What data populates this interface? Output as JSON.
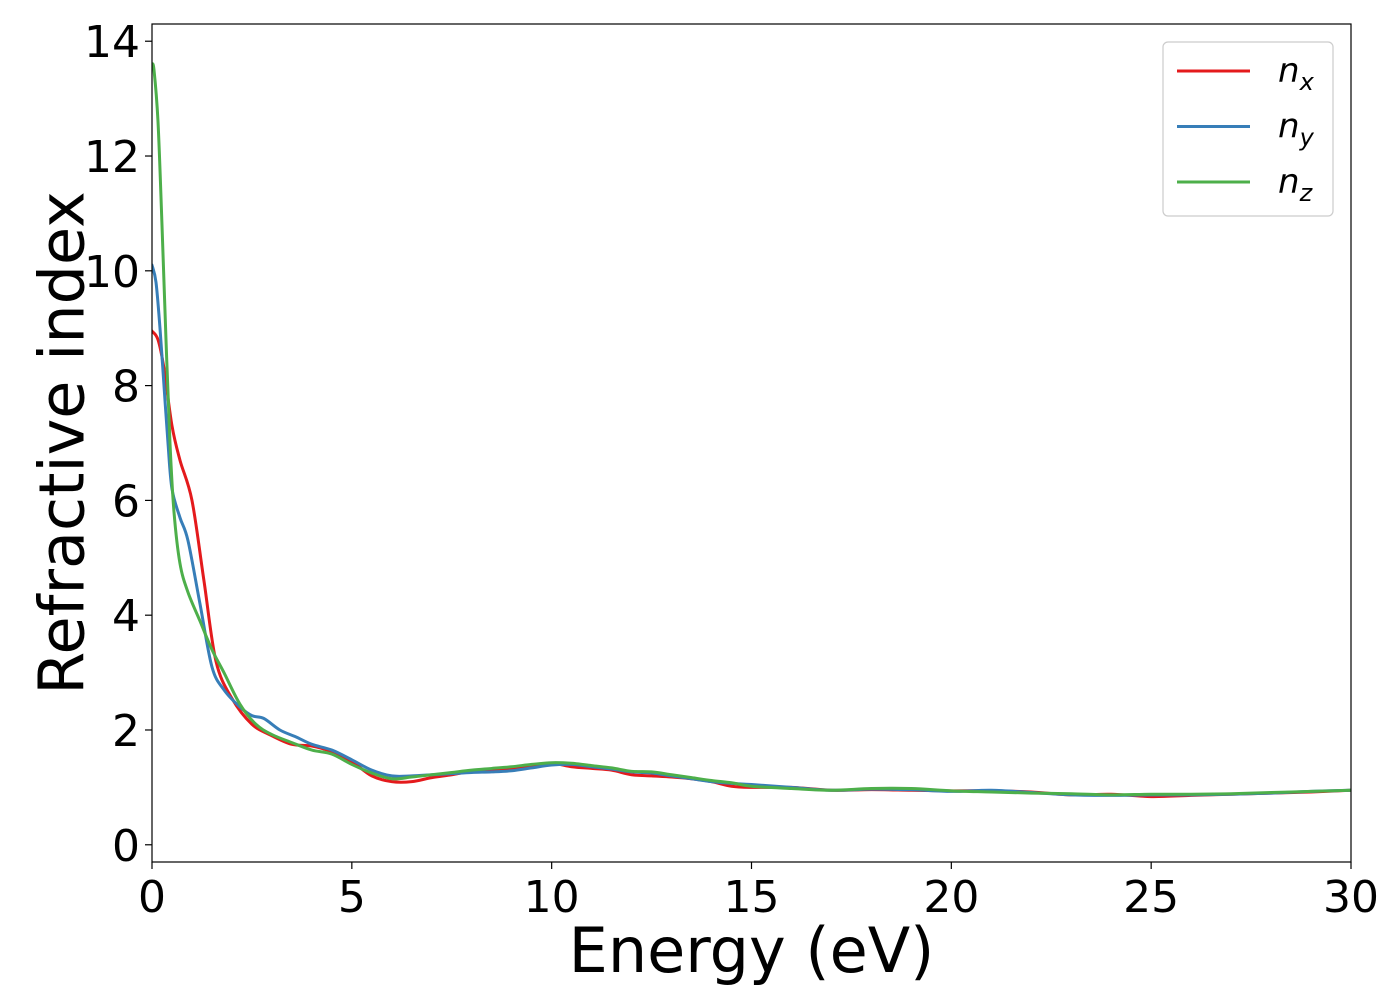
{
  "chart_data": {
    "type": "line",
    "title": "",
    "xlabel": "Energy (eV)",
    "ylabel": "Refractive index",
    "xlim": [
      0,
      30
    ],
    "ylim": [
      -0.3,
      14.3
    ],
    "xticks": [
      0,
      5,
      10,
      15,
      20,
      25,
      30
    ],
    "yticks": [
      0,
      2,
      4,
      6,
      8,
      10,
      12,
      14
    ],
    "grid": false,
    "legend_position": "top-right",
    "series": [
      {
        "name": "n",
        "subscript": "x",
        "color": "#e41a1c",
        "x": [
          0.0,
          0.15,
          0.3,
          0.5,
          0.7,
          1.0,
          1.3,
          1.6,
          2.0,
          2.5,
          3.0,
          3.5,
          4.0,
          4.5,
          5.0,
          5.5,
          6.0,
          6.5,
          7.0,
          7.5,
          8.0,
          8.5,
          9.0,
          9.5,
          10.0,
          10.5,
          11.0,
          11.5,
          12.0,
          12.5,
          13.0,
          13.5,
          14.0,
          14.5,
          15.0,
          16.0,
          17.0,
          18.0,
          19.0,
          20.0,
          21.0,
          22.0,
          23.0,
          24.0,
          25.0,
          26.0,
          27.0,
          28.0,
          29.0,
          30.0
        ],
        "y": [
          8.95,
          8.8,
          8.3,
          7.3,
          6.7,
          6.0,
          4.6,
          3.2,
          2.55,
          2.1,
          1.9,
          1.75,
          1.72,
          1.62,
          1.45,
          1.2,
          1.1,
          1.1,
          1.17,
          1.22,
          1.28,
          1.3,
          1.33,
          1.38,
          1.42,
          1.36,
          1.33,
          1.3,
          1.22,
          1.2,
          1.18,
          1.15,
          1.1,
          1.02,
          1.0,
          1.0,
          0.95,
          0.96,
          0.95,
          0.94,
          0.94,
          0.92,
          0.87,
          0.88,
          0.84,
          0.86,
          0.88,
          0.9,
          0.92,
          0.95
        ]
      },
      {
        "name": "n",
        "subscript": "y",
        "color": "#377eb8",
        "x": [
          0.0,
          0.1,
          0.2,
          0.3,
          0.4,
          0.5,
          0.7,
          0.9,
          1.2,
          1.5,
          1.8,
          2.2,
          2.5,
          2.8,
          3.2,
          3.6,
          4.0,
          4.5,
          5.0,
          5.5,
          6.0,
          6.5,
          7.0,
          7.5,
          8.0,
          8.5,
          9.0,
          9.5,
          10.0,
          10.5,
          11.0,
          11.5,
          12.0,
          12.5,
          13.0,
          13.5,
          14.0,
          14.5,
          15.0,
          16.0,
          17.0,
          18.0,
          19.0,
          20.0,
          21.0,
          22.0,
          23.0,
          24.0,
          25.0,
          26.0,
          27.0,
          28.0,
          29.0,
          30.0
        ],
        "y": [
          10.1,
          9.8,
          9.0,
          8.0,
          7.0,
          6.2,
          5.7,
          5.3,
          4.2,
          3.1,
          2.7,
          2.4,
          2.25,
          2.2,
          2.0,
          1.88,
          1.75,
          1.65,
          1.48,
          1.3,
          1.2,
          1.2,
          1.22,
          1.24,
          1.26,
          1.27,
          1.29,
          1.34,
          1.39,
          1.4,
          1.36,
          1.32,
          1.27,
          1.25,
          1.2,
          1.15,
          1.1,
          1.07,
          1.05,
          1.0,
          0.95,
          0.97,
          0.96,
          0.93,
          0.95,
          0.91,
          0.87,
          0.86,
          0.87,
          0.87,
          0.88,
          0.9,
          0.93,
          0.95
        ]
      },
      {
        "name": "n",
        "subscript": "z",
        "color": "#4daf4a",
        "x": [
          0.0,
          0.05,
          0.15,
          0.25,
          0.35,
          0.45,
          0.55,
          0.7,
          0.9,
          1.2,
          1.5,
          1.8,
          2.2,
          2.6,
          3.0,
          3.5,
          4.0,
          4.5,
          5.0,
          5.5,
          6.0,
          6.5,
          7.0,
          7.5,
          8.0,
          8.5,
          9.0,
          9.5,
          10.0,
          10.5,
          11.0,
          11.5,
          12.0,
          12.5,
          13.0,
          13.5,
          14.0,
          14.5,
          15.0,
          16.0,
          17.0,
          18.0,
          19.0,
          20.0,
          21.0,
          22.0,
          23.0,
          24.0,
          25.0,
          26.0,
          27.0,
          28.0,
          29.0,
          30.0
        ],
        "y": [
          13.6,
          13.5,
          12.6,
          10.8,
          8.8,
          7.0,
          5.8,
          4.9,
          4.4,
          3.9,
          3.4,
          3.0,
          2.45,
          2.1,
          1.92,
          1.78,
          1.65,
          1.58,
          1.4,
          1.25,
          1.15,
          1.18,
          1.22,
          1.26,
          1.3,
          1.33,
          1.36,
          1.4,
          1.43,
          1.42,
          1.38,
          1.34,
          1.28,
          1.27,
          1.22,
          1.17,
          1.12,
          1.08,
          1.02,
          0.98,
          0.95,
          0.98,
          0.98,
          0.94,
          0.92,
          0.9,
          0.89,
          0.87,
          0.88,
          0.88,
          0.89,
          0.91,
          0.93,
          0.95
        ]
      }
    ]
  }
}
